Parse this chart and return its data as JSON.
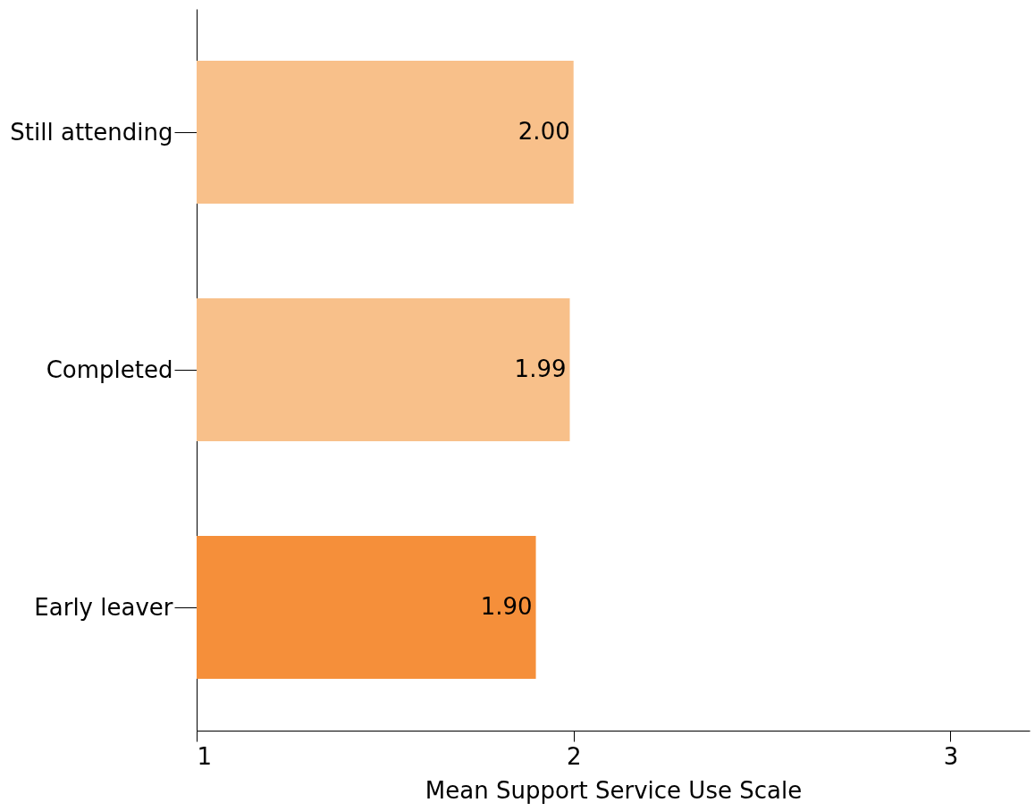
{
  "chart_data": {
    "type": "bar",
    "orientation": "horizontal",
    "xlabel": "Mean Support Service Use Scale",
    "categories": [
      "Still attending",
      "Completed",
      "Early leaver"
    ],
    "values": [
      2.0,
      1.99,
      1.9
    ],
    "colors": [
      "#f8c08a",
      "#f8c08a",
      "#f58f3a"
    ],
    "value_labels": [
      "2.00",
      "1.99",
      "1.90"
    ],
    "xlim": [
      1,
      3.21
    ],
    "xticks": [
      1,
      2,
      3
    ],
    "grid": false
  }
}
